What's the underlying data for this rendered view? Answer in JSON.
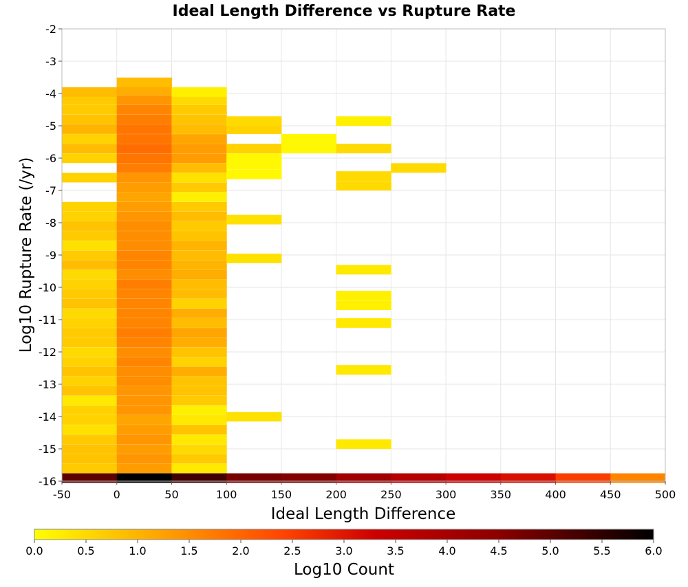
{
  "chart_data": {
    "type": "heatmap",
    "title": "Ideal Length Difference vs Rupture Rate",
    "xlabel": "Ideal Length Difference",
    "ylabel": "Log10 Rupture Rate (/yr)",
    "colorbar_label": "Log10 Count",
    "xlim": [
      -50,
      500
    ],
    "ylim": [
      -16,
      -2
    ],
    "x_ticks": [
      "-50",
      "0",
      "50",
      "100",
      "150",
      "200",
      "250",
      "300",
      "350",
      "400",
      "450",
      "500"
    ],
    "y_ticks": [
      "-2",
      "-3",
      "-4",
      "-5",
      "-6",
      "-7",
      "-8",
      "-9",
      "-10",
      "-11",
      "-12",
      "-13",
      "-14",
      "-15",
      "-16"
    ],
    "colorbar_ticks": [
      "0.0",
      "0.5",
      "1.0",
      "1.5",
      "2.0",
      "2.5",
      "3.0",
      "3.5",
      "4.0",
      "4.5",
      "5.0",
      "5.5",
      "6.0"
    ],
    "color_range": [
      0,
      6
    ],
    "colormap": [
      "#ffff00",
      "#ffa500",
      "#ff4500",
      "#cc0000",
      "#8b0000",
      "#000000"
    ],
    "grid": true,
    "bin_width_x": 50,
    "bin_height_y": 0.2857,
    "columns": [
      {
        "x": -25,
        "cells": [
          {
            "y": -15.9,
            "v": 5.0
          },
          {
            "y": -15.6,
            "v": 0.7
          },
          {
            "y": -15.3,
            "v": 0.8
          },
          {
            "y": -15.0,
            "v": 0.8
          },
          {
            "y": -14.7,
            "v": 0.7
          },
          {
            "y": -14.4,
            "v": 0.4
          },
          {
            "y": -14.1,
            "v": 0.6
          },
          {
            "y": -13.8,
            "v": 0.6
          },
          {
            "y": -13.5,
            "v": 0.3
          },
          {
            "y": -13.2,
            "v": 0.8
          },
          {
            "y": -12.9,
            "v": 0.6
          },
          {
            "y": -12.6,
            "v": 0.8
          },
          {
            "y": -12.3,
            "v": 0.6
          },
          {
            "y": -12.0,
            "v": 0.5
          },
          {
            "y": -11.7,
            "v": 0.7
          },
          {
            "y": -11.4,
            "v": 0.7
          },
          {
            "y": -11.1,
            "v": 0.6
          },
          {
            "y": -10.8,
            "v": 0.5
          },
          {
            "y": -10.5,
            "v": 0.8
          },
          {
            "y": -10.2,
            "v": 0.7
          },
          {
            "y": -9.9,
            "v": 0.6
          },
          {
            "y": -9.6,
            "v": 0.5
          },
          {
            "y": -9.3,
            "v": 0.9
          },
          {
            "y": -9.0,
            "v": 0.7
          },
          {
            "y": -8.7,
            "v": 0.4
          },
          {
            "y": -8.4,
            "v": 0.7
          },
          {
            "y": -8.1,
            "v": 0.8
          },
          {
            "y": -7.8,
            "v": 0.6
          },
          {
            "y": -7.5,
            "v": 0.6
          },
          {
            "y": -6.6,
            "v": 0.6
          },
          {
            "y": -6.0,
            "v": 0.6
          },
          {
            "y": -5.7,
            "v": 0.9
          },
          {
            "y": -5.4,
            "v": 0.6
          },
          {
            "y": -5.1,
            "v": 1.0
          },
          {
            "y": -4.8,
            "v": 0.8
          },
          {
            "y": -4.5,
            "v": 0.7
          },
          {
            "y": -4.2,
            "v": 0.7
          },
          {
            "y": -3.95,
            "v": 0.9
          }
        ]
      },
      {
        "x": 25,
        "cells": [
          {
            "y": -15.9,
            "v": 6.0
          },
          {
            "y": -15.6,
            "v": 1.3
          },
          {
            "y": -15.3,
            "v": 1.4
          },
          {
            "y": -15.0,
            "v": 1.3
          },
          {
            "y": -14.7,
            "v": 1.4
          },
          {
            "y": -14.4,
            "v": 1.3
          },
          {
            "y": -14.1,
            "v": 1.2
          },
          {
            "y": -13.8,
            "v": 1.4
          },
          {
            "y": -13.5,
            "v": 1.4
          },
          {
            "y": -13.2,
            "v": 1.4
          },
          {
            "y": -12.9,
            "v": 1.5
          },
          {
            "y": -12.6,
            "v": 1.5
          },
          {
            "y": -12.3,
            "v": 1.6
          },
          {
            "y": -12.0,
            "v": 1.5
          },
          {
            "y": -11.7,
            "v": 1.6
          },
          {
            "y": -11.4,
            "v": 1.7
          },
          {
            "y": -11.1,
            "v": 1.6
          },
          {
            "y": -10.8,
            "v": 1.6
          },
          {
            "y": -10.5,
            "v": 1.6
          },
          {
            "y": -10.2,
            "v": 1.6
          },
          {
            "y": -9.9,
            "v": 1.7
          },
          {
            "y": -9.6,
            "v": 1.5
          },
          {
            "y": -9.3,
            "v": 1.6
          },
          {
            "y": -9.0,
            "v": 1.6
          },
          {
            "y": -8.7,
            "v": 1.5
          },
          {
            "y": -8.4,
            "v": 1.5
          },
          {
            "y": -8.1,
            "v": 1.5
          },
          {
            "y": -7.8,
            "v": 1.4
          },
          {
            "y": -7.5,
            "v": 1.3
          },
          {
            "y": -7.2,
            "v": 1.2
          },
          {
            "y": -6.9,
            "v": 1.3
          },
          {
            "y": -6.6,
            "v": 1.4
          },
          {
            "y": -6.3,
            "v": 1.7
          },
          {
            "y": -6.0,
            "v": 1.8
          },
          {
            "y": -5.7,
            "v": 1.9
          },
          {
            "y": -5.4,
            "v": 1.8
          },
          {
            "y": -5.1,
            "v": 1.8
          },
          {
            "y": -4.8,
            "v": 1.7
          },
          {
            "y": -4.5,
            "v": 1.6
          },
          {
            "y": -4.2,
            "v": 1.4
          },
          {
            "y": -3.9,
            "v": 1.1
          },
          {
            "y": -3.65,
            "v": 0.9
          }
        ]
      },
      {
        "x": 75,
        "cells": [
          {
            "y": -15.9,
            "v": 5.3
          },
          {
            "y": -15.6,
            "v": 0.3
          },
          {
            "y": -15.3,
            "v": 0.7
          },
          {
            "y": -15.0,
            "v": 0.5
          },
          {
            "y": -14.7,
            "v": 0.3
          },
          {
            "y": -14.4,
            "v": 0.8
          },
          {
            "y": -14.1,
            "v": 0.3
          },
          {
            "y": -13.8,
            "v": 0.2
          },
          {
            "y": -13.5,
            "v": 0.7
          },
          {
            "y": -13.2,
            "v": 0.8
          },
          {
            "y": -12.9,
            "v": 0.8
          },
          {
            "y": -12.6,
            "v": 1.1
          },
          {
            "y": -12.3,
            "v": 0.6
          },
          {
            "y": -12.0,
            "v": 0.8
          },
          {
            "y": -11.7,
            "v": 1.1
          },
          {
            "y": -11.4,
            "v": 1.2
          },
          {
            "y": -11.1,
            "v": 0.9
          },
          {
            "y": -10.8,
            "v": 1.1
          },
          {
            "y": -10.5,
            "v": 0.6
          },
          {
            "y": -10.2,
            "v": 0.9
          },
          {
            "y": -9.9,
            "v": 0.9
          },
          {
            "y": -9.6,
            "v": 1.1
          },
          {
            "y": -9.3,
            "v": 1.0
          },
          {
            "y": -9.0,
            "v": 0.9
          },
          {
            "y": -8.7,
            "v": 1.0
          },
          {
            "y": -8.4,
            "v": 0.8
          },
          {
            "y": -8.1,
            "v": 0.7
          },
          {
            "y": -7.8,
            "v": 0.9
          },
          {
            "y": -7.5,
            "v": 0.7
          },
          {
            "y": -7.2,
            "v": 0.2
          },
          {
            "y": -6.9,
            "v": 0.7
          },
          {
            "y": -6.6,
            "v": 0.4
          },
          {
            "y": -6.3,
            "v": 0.9
          },
          {
            "y": -6.0,
            "v": 1.3
          },
          {
            "y": -5.7,
            "v": 1.3
          },
          {
            "y": -5.4,
            "v": 1.2
          },
          {
            "y": -5.1,
            "v": 0.9
          },
          {
            "y": -4.8,
            "v": 0.8
          },
          {
            "y": -4.5,
            "v": 0.7
          },
          {
            "y": -4.2,
            "v": 0.5
          },
          {
            "y": -3.95,
            "v": 0.2
          }
        ]
      },
      {
        "x": 125,
        "cells": [
          {
            "y": -15.9,
            "v": 4.7
          },
          {
            "y": -14.0,
            "v": 0.4
          },
          {
            "y": -9.1,
            "v": 0.4
          },
          {
            "y": -7.9,
            "v": 0.4
          },
          {
            "y": -6.5,
            "v": 0.1
          },
          {
            "y": -6.2,
            "v": 0.1
          },
          {
            "y": -6.0,
            "v": 0.1
          },
          {
            "y": -5.7,
            "v": 0.6
          },
          {
            "y": -5.1,
            "v": 0.6
          },
          {
            "y": -4.85,
            "v": 0.5
          }
        ]
      },
      {
        "x": 175,
        "cells": [
          {
            "y": -15.9,
            "v": 4.6
          },
          {
            "y": -5.7,
            "v": 0.1
          },
          {
            "y": -5.4,
            "v": 0.1
          }
        ]
      },
      {
        "x": 225,
        "cells": [
          {
            "y": -15.9,
            "v": 4.1
          },
          {
            "y": -14.85,
            "v": 0.3
          },
          {
            "y": -12.55,
            "v": 0.3
          },
          {
            "y": -11.1,
            "v": 0.3
          },
          {
            "y": -10.55,
            "v": 0.2
          },
          {
            "y": -10.25,
            "v": 0.2
          },
          {
            "y": -9.45,
            "v": 0.3
          },
          {
            "y": -6.85,
            "v": 0.5
          },
          {
            "y": -6.55,
            "v": 0.5
          },
          {
            "y": -5.7,
            "v": 0.5
          },
          {
            "y": -4.85,
            "v": 0.2
          }
        ]
      },
      {
        "x": 275,
        "cells": [
          {
            "y": -15.9,
            "v": 3.7
          },
          {
            "y": -6.3,
            "v": 0.5
          }
        ]
      },
      {
        "x": 325,
        "cells": [
          {
            "y": -15.9,
            "v": 3.3
          }
        ]
      },
      {
        "x": 375,
        "cells": [
          {
            "y": -15.9,
            "v": 3.1
          }
        ]
      },
      {
        "x": 425,
        "cells": [
          {
            "y": -15.9,
            "v": 2.5
          }
        ]
      },
      {
        "x": 475,
        "cells": [
          {
            "y": -15.9,
            "v": 1.6
          }
        ]
      }
    ]
  }
}
